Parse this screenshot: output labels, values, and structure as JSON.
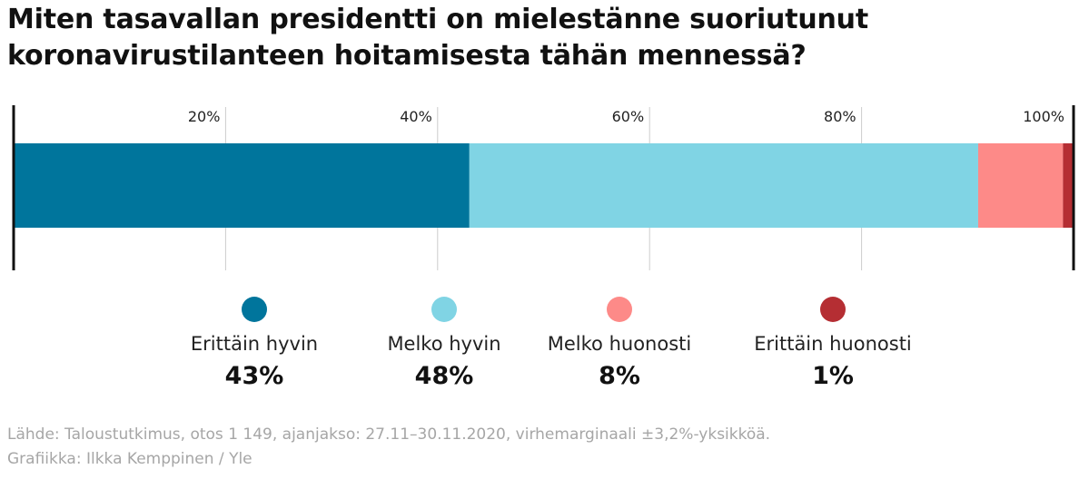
{
  "title_line1": "Miten tasavallan presidentti on mielestänne suoriutunut",
  "title_line2": "koronavirustilanteen hoitamisesta tähän mennessä?",
  "source": "Lähde: Taloustutkimus, otos 1 149, ajanjakso: 27.11–30.11.2020, virhemarginaali ±3,2%-yksikköä.",
  "credit": "Grafiikka: Ilkka Kemppinen / Yle",
  "colors": {
    "erittain_hyvin": "#00759c",
    "melko_hyvin": "#80d4e4",
    "melko_huonosti": "#fd8a88",
    "erittain_huonosti": "#b52e33",
    "axis": "#111111",
    "grid": "#cccccc"
  },
  "chart_data": {
    "type": "bar",
    "orientation": "horizontal",
    "stacked": true,
    "title": "Miten tasavallan presidentti on mielestänne suoriutunut koronavirustilanteen hoitamisesta tähän mennessä?",
    "xlim": [
      0,
      100
    ],
    "ticks": [
      {
        "value": 20,
        "label": "20%"
      },
      {
        "value": 40,
        "label": "40%"
      },
      {
        "value": 60,
        "label": "60%"
      },
      {
        "value": 80,
        "label": "80%"
      },
      {
        "value": 100,
        "label": "100%"
      }
    ],
    "grid": true,
    "legend_position": "bottom",
    "series": [
      {
        "name": "Erittäin hyvin",
        "value": 43,
        "value_label": "43%",
        "color": "#00759c"
      },
      {
        "name": "Melko hyvin",
        "value": 48,
        "value_label": "48%",
        "color": "#80d4e4"
      },
      {
        "name": "Melko huonosti",
        "value": 8,
        "value_label": "8%",
        "color": "#fd8a88"
      },
      {
        "name": "Erittäin huonosti",
        "value": 1,
        "value_label": "1%",
        "color": "#b52e33"
      }
    ]
  }
}
